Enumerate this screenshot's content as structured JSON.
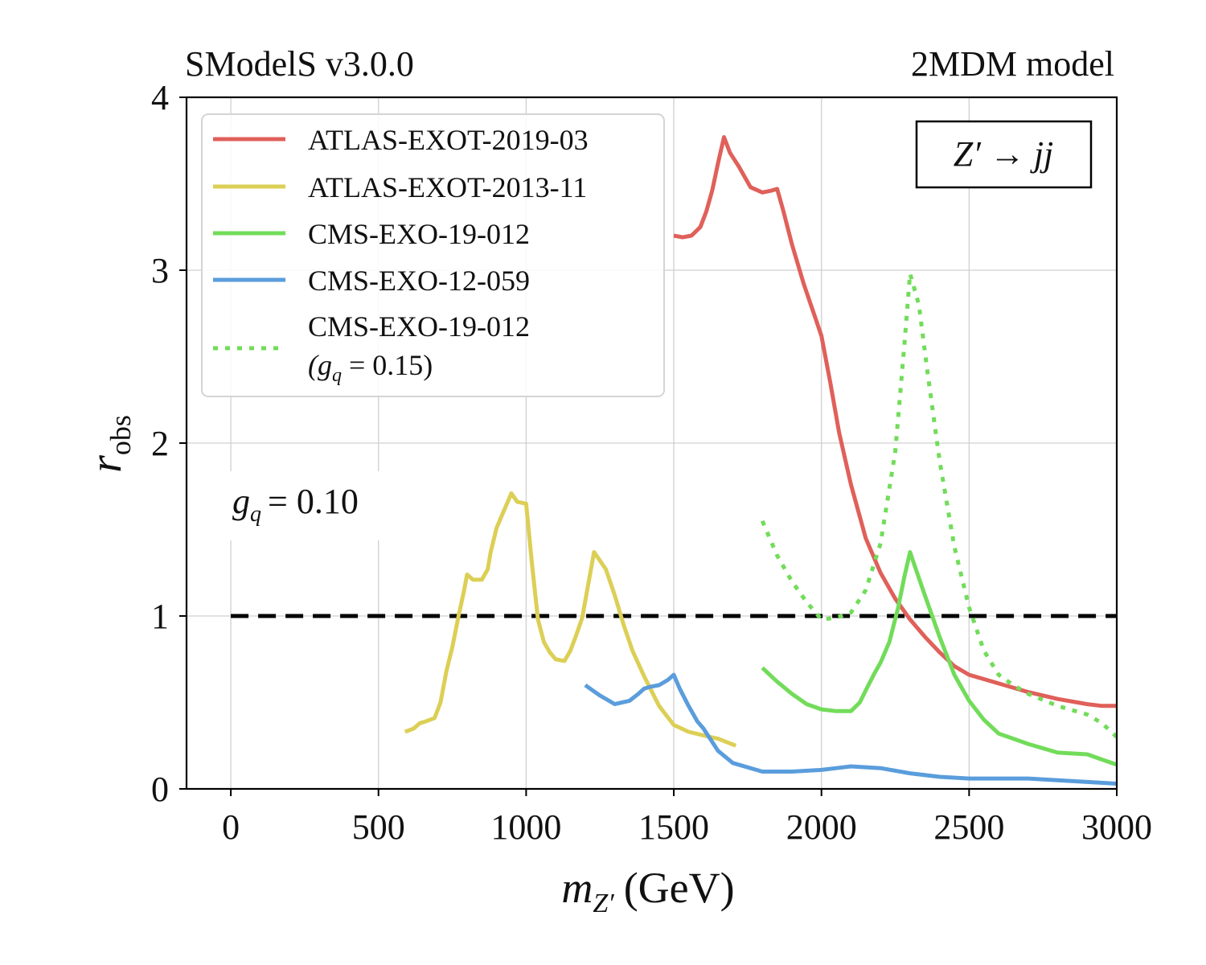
{
  "chart_data": {
    "type": "line",
    "title_left": "SModelS v3.0.0",
    "title_right": "2MDM model",
    "xlabel": "m_{Z'} (GeV)",
    "xlabel_main": "m",
    "xlabel_sub": "Z′",
    "xlabel_unit": "(GeV)",
    "ylabel": "r_obs",
    "ylabel_main": "r",
    "ylabel_sub": "obs",
    "xlim": [
      -150,
      3000
    ],
    "ylim": [
      0,
      4
    ],
    "x_ticks": [
      0,
      500,
      1000,
      1500,
      2000,
      2500,
      3000
    ],
    "y_ticks": [
      0,
      1,
      2,
      3,
      4
    ],
    "x_tick_labels": [
      "0",
      "500",
      "1000",
      "1500",
      "2000",
      "2500",
      "3000"
    ],
    "y_tick_labels": [
      "0",
      "1",
      "2",
      "3",
      "4"
    ],
    "grid": true,
    "legend_position": "top-left",
    "annotations": {
      "process": "Z′ → jj",
      "coupling": "g_q = 0.10",
      "coupling_main": "g",
      "coupling_sub": "q",
      "coupling_rest": "= 0.10"
    },
    "reference_line": {
      "y": 1,
      "x_range": [
        0,
        3000
      ],
      "style": "dashed",
      "color": "#000000"
    },
    "series": [
      {
        "name": "ATLAS-EXOT-2019-03",
        "color": "#e0605a",
        "style": "solid",
        "x": [
          1500,
          1530,
          1560,
          1590,
          1610,
          1630,
          1650,
          1670,
          1690,
          1720,
          1760,
          1800,
          1830,
          1850,
          1870,
          1900,
          1940,
          1980,
          2000,
          2030,
          2060,
          2100,
          2150,
          2200,
          2250,
          2300,
          2350,
          2400,
          2450,
          2500,
          2600,
          2700,
          2800,
          2900,
          2950,
          3000
        ],
        "values": [
          3.2,
          3.19,
          3.2,
          3.25,
          3.34,
          3.46,
          3.62,
          3.77,
          3.68,
          3.6,
          3.48,
          3.45,
          3.46,
          3.47,
          3.35,
          3.15,
          2.92,
          2.72,
          2.62,
          2.35,
          2.06,
          1.76,
          1.45,
          1.25,
          1.1,
          0.98,
          0.88,
          0.79,
          0.71,
          0.66,
          0.61,
          0.56,
          0.52,
          0.49,
          0.48,
          0.48
        ]
      },
      {
        "name": "ATLAS-EXOT-2013-11",
        "color": "#dccf56",
        "style": "solid",
        "x": [
          590,
          620,
          640,
          660,
          690,
          710,
          730,
          750,
          770,
          790,
          800,
          820,
          850,
          870,
          880,
          900,
          920,
          940,
          950,
          970,
          1000,
          1020,
          1040,
          1060,
          1080,
          1100,
          1130,
          1150,
          1170,
          1190,
          1210,
          1230,
          1250,
          1270,
          1300,
          1330,
          1360,
          1400,
          1450,
          1500,
          1550,
          1600,
          1650,
          1710
        ],
        "values": [
          0.33,
          0.35,
          0.38,
          0.39,
          0.41,
          0.5,
          0.68,
          0.82,
          0.99,
          1.15,
          1.24,
          1.21,
          1.21,
          1.27,
          1.37,
          1.51,
          1.59,
          1.67,
          1.71,
          1.66,
          1.65,
          1.3,
          0.98,
          0.85,
          0.79,
          0.75,
          0.74,
          0.8,
          0.89,
          0.99,
          1.18,
          1.37,
          1.32,
          1.27,
          1.12,
          0.95,
          0.8,
          0.65,
          0.48,
          0.37,
          0.33,
          0.31,
          0.29,
          0.25
        ]
      },
      {
        "name": "CMS-EXO-19-012",
        "color": "#72dc5a",
        "style": "solid",
        "x": [
          1800,
          1850,
          1900,
          1950,
          2000,
          2050,
          2100,
          2130,
          2150,
          2180,
          2200,
          2230,
          2260,
          2280,
          2300,
          2320,
          2350,
          2400,
          2450,
          2500,
          2550,
          2600,
          2650,
          2700,
          2800,
          2900,
          2950,
          3000
        ],
        "values": [
          0.7,
          0.62,
          0.55,
          0.49,
          0.46,
          0.45,
          0.45,
          0.5,
          0.57,
          0.67,
          0.73,
          0.85,
          1.05,
          1.22,
          1.37,
          1.27,
          1.12,
          0.88,
          0.66,
          0.51,
          0.4,
          0.32,
          0.29,
          0.26,
          0.21,
          0.2,
          0.17,
          0.14
        ]
      },
      {
        "name": "CMS-EXO-12-059",
        "color": "#5a9ddc",
        "style": "solid",
        "x": [
          1200,
          1250,
          1300,
          1350,
          1380,
          1400,
          1420,
          1450,
          1480,
          1500,
          1520,
          1550,
          1580,
          1600,
          1650,
          1700,
          1800,
          1900,
          2000,
          2050,
          2100,
          2200,
          2300,
          2400,
          2500,
          2600,
          2700,
          2800,
          2900,
          3000
        ],
        "values": [
          0.6,
          0.54,
          0.49,
          0.51,
          0.55,
          0.58,
          0.59,
          0.6,
          0.63,
          0.66,
          0.58,
          0.48,
          0.39,
          0.35,
          0.22,
          0.15,
          0.1,
          0.1,
          0.11,
          0.12,
          0.13,
          0.12,
          0.09,
          0.07,
          0.06,
          0.06,
          0.06,
          0.05,
          0.04,
          0.03
        ]
      },
      {
        "name": "CMS-EXO-19-012",
        "name_line2": "(g_q = 0.15)",
        "name2_main": "(g",
        "name2_sub": "q",
        "name2_rest": " = 0.15)",
        "color": "#72dc5a",
        "style": "dotted",
        "x": [
          1800,
          1850,
          1900,
          1950,
          2000,
          2050,
          2100,
          2150,
          2200,
          2250,
          2280,
          2300,
          2330,
          2360,
          2400,
          2450,
          2500,
          2550,
          2600,
          2650,
          2700,
          2800,
          2900,
          2950,
          3000
        ],
        "values": [
          1.55,
          1.35,
          1.2,
          1.08,
          0.98,
          0.99,
          1.02,
          1.15,
          1.42,
          1.95,
          2.55,
          2.98,
          2.8,
          2.4,
          1.9,
          1.4,
          1.05,
          0.8,
          0.66,
          0.6,
          0.55,
          0.48,
          0.43,
          0.38,
          0.3
        ]
      }
    ]
  }
}
